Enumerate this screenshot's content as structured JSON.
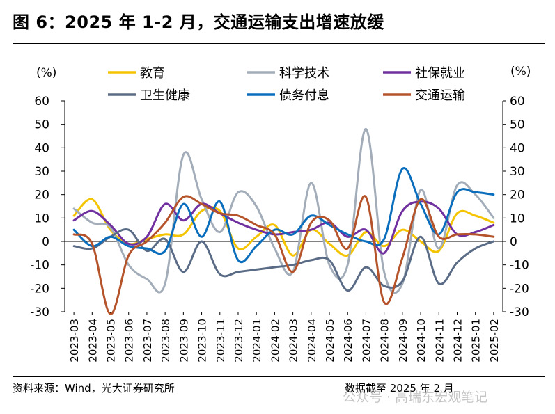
{
  "title": "图 6：2025 年 1-2 月，交通运输支出增速放缓",
  "footer": {
    "source": "资料来源：Wind，光大证券研究所",
    "date_note": "数据截至 2025 年 2 月",
    "watermark": "公众号 · 高瑞东宏观笔记"
  },
  "chart_data": {
    "type": "line",
    "title": "图 6：2025 年 1-2 月，交通运输支出增速放缓",
    "ylabel_left": "(%)",
    "ylabel_right": "(%)",
    "ylim": [
      -30,
      60
    ],
    "yticks": [
      -30,
      -20,
      -10,
      0,
      10,
      20,
      30,
      40,
      50,
      60
    ],
    "legend_position": "top",
    "categories": [
      "2023-03",
      "2023-04",
      "2023-05",
      "2023-06",
      "2023-07",
      "2023-08",
      "2023-09",
      "2023-10",
      "2023-11",
      "2023-12",
      "2024-01",
      "2024-02",
      "2024-03",
      "2024-04",
      "2024-05",
      "2024-06",
      "2024-07",
      "2024-08",
      "2024-09",
      "2024-10",
      "2024-11",
      "2024-12",
      "2025-01",
      "2025-02"
    ],
    "series": [
      {
        "name": "教育",
        "color": "#f5c400",
        "values": [
          11,
          18,
          5,
          -1,
          1,
          3,
          3,
          13,
          13,
          -3,
          2,
          7,
          -6,
          5,
          -1,
          -6,
          4,
          -2,
          5,
          0,
          -4,
          12,
          11,
          8
        ]
      },
      {
        "name": "科学技术",
        "color": "#a2adb9",
        "values": [
          14,
          8,
          6,
          -10,
          -16,
          -18,
          37,
          18,
          4,
          21,
          15,
          -3,
          -13,
          25,
          -10,
          -10,
          48,
          -13,
          -18,
          22,
          -3,
          24,
          20,
          10
        ]
      },
      {
        "name": "社保就业",
        "color": "#7030a0",
        "values": [
          9,
          13,
          7,
          -1,
          2,
          16,
          9,
          16,
          12,
          8,
          5,
          3,
          4,
          5,
          8,
          2,
          5,
          -5,
          13,
          17,
          14,
          3,
          4,
          7
        ]
      },
      {
        "name": "卫生健康",
        "color": "#5a6b86",
        "values": [
          -2,
          -3,
          2,
          5,
          -4,
          1,
          -13,
          0,
          -14,
          -13,
          -12,
          -11,
          -10,
          -8,
          -8,
          -21,
          -11,
          -19,
          -17,
          2,
          -18,
          -9,
          -3,
          0
        ]
      },
      {
        "name": "债务付息",
        "color": "#0a6ebd",
        "values": [
          5,
          -2,
          2,
          -2,
          -3,
          -4,
          16,
          2,
          17,
          -8,
          -2,
          5,
          3,
          11,
          7,
          3,
          0,
          1,
          31,
          16,
          3,
          21,
          21,
          20
        ]
      },
      {
        "name": "交通运输",
        "color": "#b5532b",
        "values": [
          3,
          -1,
          -31,
          -6,
          0,
          8,
          19,
          16,
          12,
          11,
          7,
          3,
          -13,
          8,
          9,
          -3,
          19,
          -26,
          -7,
          18,
          2,
          3,
          3,
          2
        ]
      }
    ]
  }
}
